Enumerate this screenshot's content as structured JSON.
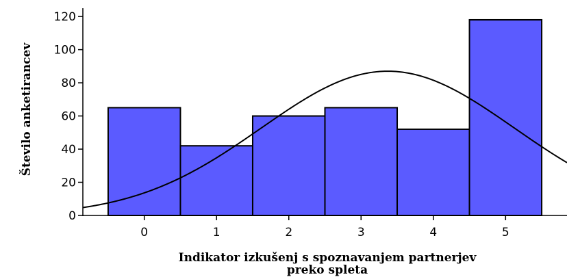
{
  "chart_data": {
    "type": "bar",
    "subtype": "histogram",
    "categories": [
      "0",
      "1",
      "2",
      "3",
      "4",
      "5"
    ],
    "values": [
      65,
      42,
      60,
      65,
      52,
      118
    ],
    "xlabel_lines": [
      "Indikator izkušenj s spoznavanjem partnerjev",
      "preko spleta"
    ],
    "ylabel": "Število anketirancev",
    "ylim": [
      0,
      125
    ],
    "yticks": [
      0,
      20,
      40,
      60,
      80,
      100,
      120
    ],
    "xlim": [
      -0.85,
      5.85
    ],
    "grid": false,
    "legend": "none",
    "bar_color": "#5b5bff",
    "bar_edge_color": "#000000",
    "curve": {
      "kind": "normal",
      "mean": 3.37,
      "peak": 87,
      "sd": 1.75,
      "color": "#000000"
    }
  }
}
